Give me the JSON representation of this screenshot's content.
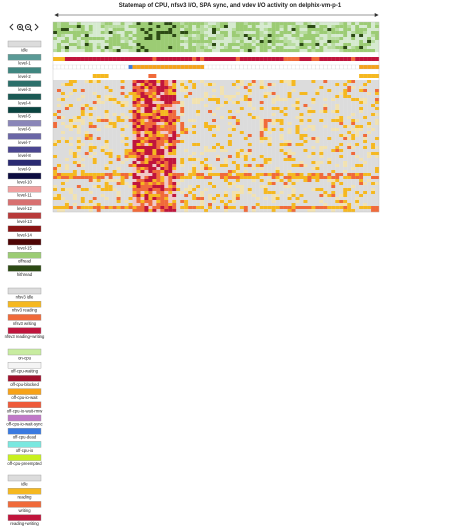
{
  "title": "Statemap of CPU, nfsv3 I/O, SPA sync, and vdev I/O activity on delphix-vm-p-1",
  "legend_groups": [
    {
      "items": [
        {
          "label": "idle",
          "color": "#dcdcdc"
        },
        {
          "label": "level-1",
          "color": "#5a9a96"
        },
        {
          "label": "level-2",
          "color": "#3f8680"
        },
        {
          "label": "level-3",
          "color": "#2b6f6a"
        },
        {
          "label": "level-4",
          "color": "#1b5a55"
        },
        {
          "label": "level-5",
          "color": "#0a4440"
        },
        {
          "label": "level-6",
          "color": "#8a86b8"
        },
        {
          "label": "level-7",
          "color": "#6a66a6"
        },
        {
          "label": "level-8",
          "color": "#4a4690"
        },
        {
          "label": "level-9",
          "color": "#2a2a72"
        },
        {
          "label": "level-10",
          "color": "#0c0c40"
        },
        {
          "label": "level-11",
          "color": "#f0a0a0"
        },
        {
          "label": "level-12",
          "color": "#d87070"
        },
        {
          "label": "level-13",
          "color": "#b83a3a"
        },
        {
          "label": "level-14",
          "color": "#8a1414"
        },
        {
          "label": "level-15",
          "color": "#4e0404"
        },
        {
          "label": "offread",
          "color": "#9ccc74"
        },
        {
          "label": "hithread",
          "color": "#2c4a14"
        }
      ]
    },
    {
      "items": [
        {
          "label": "nfsv3 idle",
          "color": "#dcdcdc"
        },
        {
          "label": "nfsv3 reading",
          "color": "#f5b820"
        },
        {
          "label": "nfsv3 writing",
          "color": "#f06a3a"
        },
        {
          "label": "nfsv3 reading+writing",
          "color": "#c0143c"
        }
      ]
    },
    {
      "items": [
        {
          "label": "on-cpu",
          "color": "#c8eca0"
        },
        {
          "label": "off-cpu-waiting",
          "color": "#f4f4f4"
        },
        {
          "label": "off-cpu-blocked",
          "color": "#a0102c"
        },
        {
          "label": "off-cpu-io-wait",
          "color": "#f7a218"
        },
        {
          "label": "off-cpu-io-wait-rmw",
          "color": "#ee5a3a"
        },
        {
          "label": "off-cpu-io-wait-sync",
          "color": "#c078c8"
        },
        {
          "label": "off-cpu-dead",
          "color": "#3a7ae0"
        },
        {
          "label": "off-cpu-io",
          "color": "#7ae8e0"
        },
        {
          "label": "off-cpu-preempted",
          "color": "#c8f020"
        }
      ]
    },
    {
      "items": [
        {
          "label": "idle",
          "color": "#dcdcdc"
        },
        {
          "label": "reading",
          "color": "#f5b820"
        },
        {
          "label": "writing",
          "color": "#f06a3a"
        },
        {
          "label": "reading+writing",
          "color": "#c0143c"
        }
      ]
    }
  ]
}
